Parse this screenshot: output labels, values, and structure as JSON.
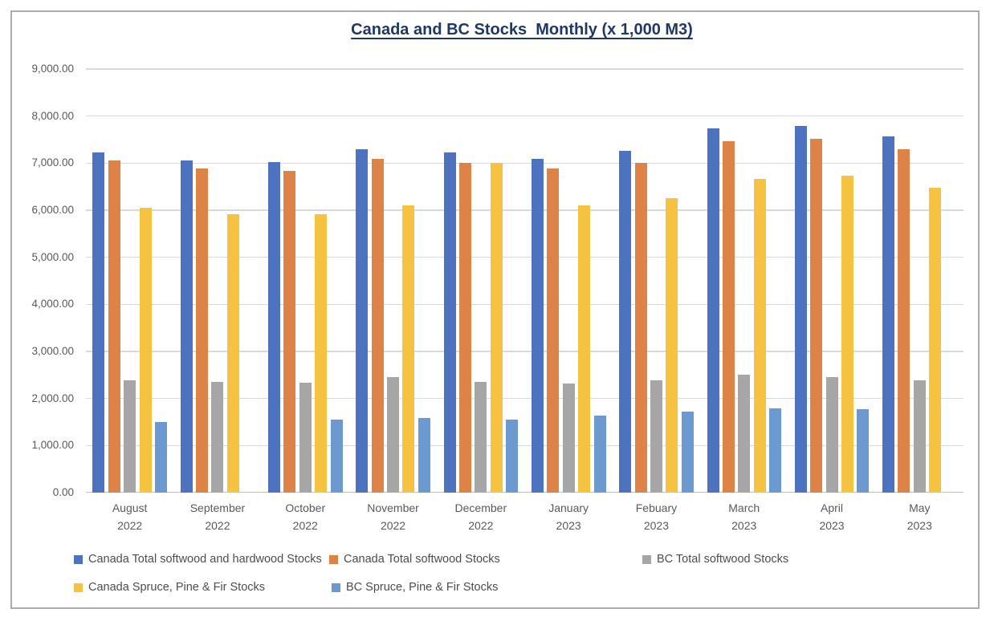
{
  "chart_data": {
    "type": "bar",
    "title": "Canada and BC Stocks  Monthly (x 1,000 M3)",
    "title_color": "#1F3864",
    "categories": [
      {
        "month": "August",
        "year": "2022"
      },
      {
        "month": "September",
        "year": "2022"
      },
      {
        "month": "October",
        "year": "2022"
      },
      {
        "month": "November",
        "year": "2022"
      },
      {
        "month": "December",
        "year": "2022"
      },
      {
        "month": "January",
        "year": "2023"
      },
      {
        "month": "Febuary",
        "year": "2023"
      },
      {
        "month": "March",
        "year": "2023"
      },
      {
        "month": "April",
        "year": "2023"
      },
      {
        "month": "May",
        "year": "2023"
      }
    ],
    "series": [
      {
        "name": "Canada Total softwood and hardwood Stocks",
        "color": "#4D72BE",
        "values": [
          7220,
          7050,
          7020,
          7300,
          7230,
          7100,
          7260,
          7740,
          7790,
          7570
        ]
      },
      {
        "name": "Canada Total softwood Stocks",
        "color": "#DE8348",
        "values": [
          7050,
          6880,
          6830,
          7090,
          7010,
          6880,
          7010,
          7470,
          7520,
          7300
        ]
      },
      {
        "name": "BC Total softwood Stocks",
        "color": "#A6A6A6",
        "values": [
          2380,
          2360,
          2340,
          2460,
          2360,
          2320,
          2380,
          2510,
          2450,
          2380
        ]
      },
      {
        "name": "Canada Spruce, Pine & Fir Stocks",
        "color": "#F5C242",
        "values": [
          6050,
          5920,
          5920,
          6100,
          7000,
          6100,
          6250,
          6660,
          6740,
          6470
        ]
      },
      {
        "name": "BC Spruce, Pine & Fir Stocks",
        "color": "#6C9AD0",
        "values": [
          1500,
          0,
          1550,
          1590,
          1560,
          1640,
          1720,
          1790,
          1780,
          0
        ]
      }
    ],
    "xlabel": "",
    "ylabel": "",
    "ylim": [
      0,
      9000
    ],
    "ytick_interval": 1000,
    "ytick_labels": [
      "0.00",
      "1,000.00",
      "2,000.00",
      "3,000.00",
      "4,000.00",
      "5,000.00",
      "6,000.00",
      "7,000.00",
      "8,000.00",
      "9,000.00"
    ],
    "grid": "horizontal",
    "gridline_color": "#D9D9D9",
    "axis_line_color": "#BFBFBF",
    "axis_text_color": "#595959",
    "legend_position": "bottom",
    "legend_rows": [
      [
        "Canada Total softwood and hardwood Stocks",
        "Canada Total softwood Stocks",
        "BC Total softwood Stocks"
      ],
      [
        "Canada Spruce, Pine & Fir Stocks",
        "BC Spruce, Pine & Fir Stocks"
      ]
    ]
  }
}
